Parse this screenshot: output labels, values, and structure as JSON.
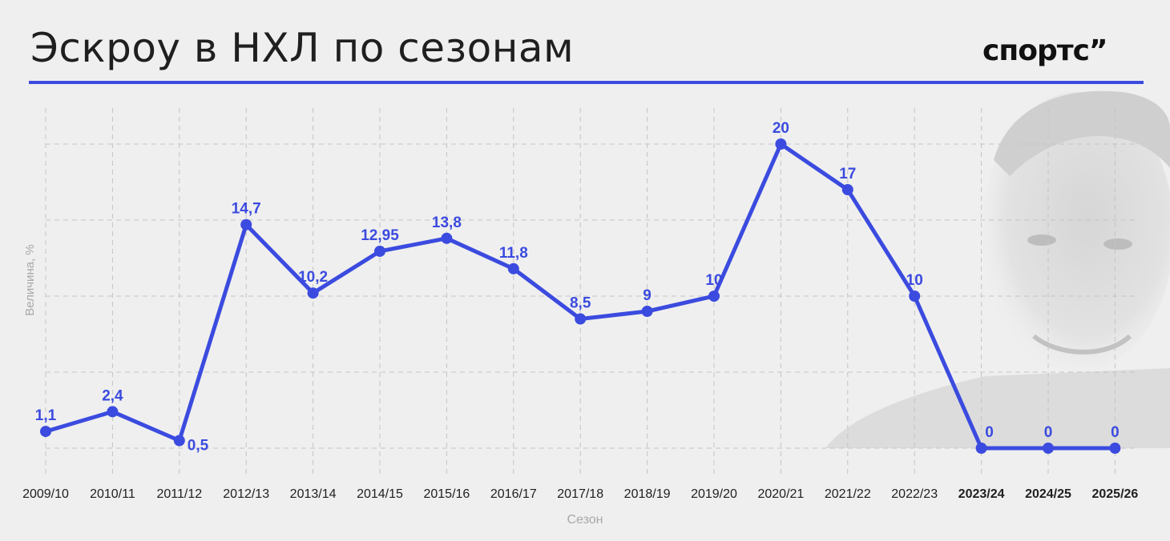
{
  "title": "Эскроу в НХЛ по сезонам",
  "brand": "спортс”",
  "colors": {
    "accent": "#3b4bdf",
    "background": "#efefef",
    "text": "#1f1f1f",
    "grid": "#c4c4c4",
    "axis_label": "#a8a8a8"
  },
  "photo": "portrait-photo",
  "chart_data": {
    "type": "line",
    "xlabel": "Сезон",
    "ylabel": "Величина, %",
    "ylim": [
      0,
      20
    ],
    "grid": true,
    "y_gridlines": [
      0,
      5,
      10,
      15,
      20
    ],
    "bold_categories": [
      "2023/24",
      "2024/25",
      "2025/26"
    ],
    "categories": [
      "2009/10",
      "2010/11",
      "2011/12",
      "2012/13",
      "2013/14",
      "2014/15",
      "2015/16",
      "2016/17",
      "2017/18",
      "2018/19",
      "2019/20",
      "2020/21",
      "2021/22",
      "2022/23",
      "2023/24",
      "2024/25",
      "2025/26"
    ],
    "values": [
      1.1,
      2.4,
      0.5,
      14.7,
      10.2,
      12.95,
      13.8,
      11.8,
      8.5,
      9,
      10,
      20,
      17,
      10,
      0,
      0,
      0
    ],
    "labels": [
      "1,1",
      "2,4",
      "0,5",
      "14,7",
      "10,2",
      "12,95",
      "13,8",
      "11,8",
      "8,5",
      "9",
      "10",
      "20",
      "17",
      "10",
      "0",
      "0",
      "0"
    ]
  }
}
